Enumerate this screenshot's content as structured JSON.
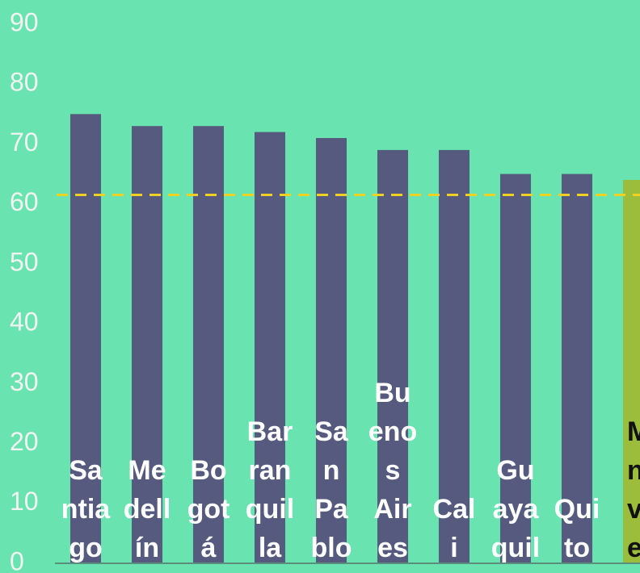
{
  "chart_data": {
    "type": "bar",
    "title": "",
    "xlabel": "",
    "ylabel": "",
    "ylim": [
      0,
      90
    ],
    "yticks": [
      0,
      10,
      20,
      30,
      40,
      50,
      60,
      70,
      80,
      90
    ],
    "grid": false,
    "categories": [
      "Santiago",
      "Medellín",
      "Bogotá",
      "Barranquilla",
      "San Pablo",
      "Buenos Aires",
      "Cali",
      "Guayaquil",
      "Quito",
      "Montevideo"
    ],
    "category_label_lines": [
      [
        "Sa",
        "ntia",
        "go"
      ],
      [
        "Me",
        "dell",
        "ín"
      ],
      [
        "Bo",
        "got",
        "á"
      ],
      [
        "Bar",
        "ran",
        "quil",
        "la"
      ],
      [
        "Sa",
        "n",
        "Pa",
        "blo"
      ],
      [
        "Bu",
        "eno",
        "s",
        "Air",
        "es"
      ],
      [
        "Cal",
        "i"
      ],
      [
        "Gu",
        "aya",
        "quil"
      ],
      [
        "Qui",
        "to"
      ],
      [
        "M",
        "n",
        "v",
        "e"
      ]
    ],
    "values": [
      75,
      73,
      73,
      72,
      71,
      69,
      69,
      65,
      65,
      64
    ],
    "highlight_index": 9,
    "reference_line": {
      "value": 61.5,
      "style": "dashed"
    },
    "colors": {
      "background": "#69e3b0",
      "bar": "#555a7e",
      "highlight_bar": "#9cbd3c",
      "reference_line": "#f0d020",
      "axis": "#5a8f7c"
    }
  }
}
